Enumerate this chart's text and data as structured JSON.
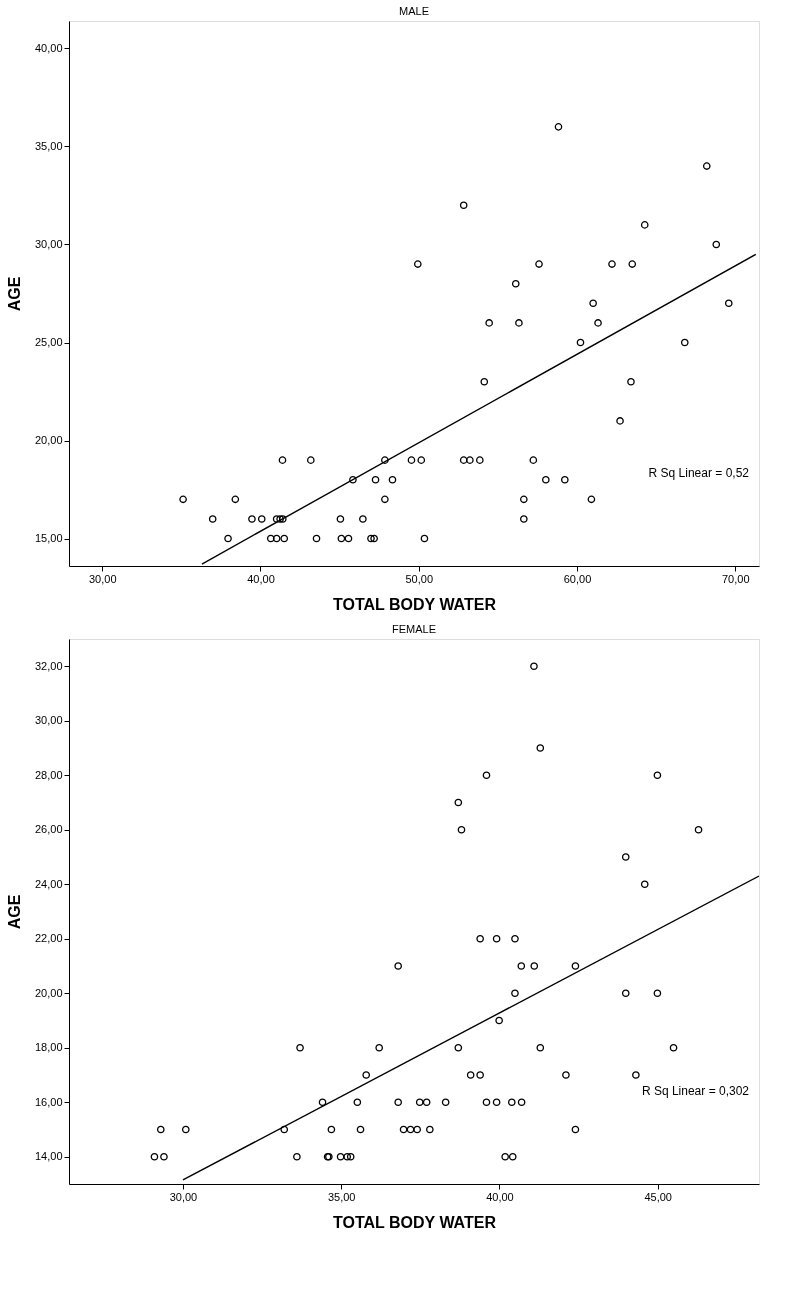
{
  "chart_data": [
    {
      "type": "scatter",
      "title": "MALE",
      "xlabel": "TOTAL BODY WATER",
      "ylabel": "AGE",
      "xlim": [
        27.9,
        71.5
      ],
      "ylim": [
        13.6,
        41.4
      ],
      "xticks": [
        {
          "value": 30,
          "label": "30,00"
        },
        {
          "value": 40,
          "label": "40,00"
        },
        {
          "value": 50,
          "label": "50,00"
        },
        {
          "value": 60,
          "label": "60,00"
        },
        {
          "value": 70,
          "label": "70,00"
        }
      ],
      "yticks": [
        {
          "value": 15,
          "label": "15,00"
        },
        {
          "value": 20,
          "label": "20,00"
        },
        {
          "value": 25,
          "label": "25,00"
        },
        {
          "value": 30,
          "label": "30,00"
        },
        {
          "value": 35,
          "label": "35,00"
        },
        {
          "value": 40,
          "label": "40,00"
        }
      ],
      "grid": false,
      "series": [
        {
          "type": "scatter",
          "marker": "circle",
          "color": "#000000",
          "x": [
            37.95,
            40.65,
            41.02,
            41.5,
            43.54,
            45.11,
            45.56,
            46.98,
            47.18,
            50.36,
            36.98,
            39.46,
            40.08,
            41.02,
            41.24,
            41.41,
            45.05,
            46.47,
            56.64,
            35.11,
            38.41,
            47.86,
            56.64,
            60.91,
            45.84,
            47.27,
            48.34,
            58.03,
            59.23,
            41.39,
            43.18,
            47.86,
            49.54,
            50.16,
            52.84,
            53.23,
            53.86,
            57.24,
            62.72,
            54.14,
            63.41,
            60.22,
            66.81,
            54.45,
            56.33,
            61.33,
            61.02,
            69.59,
            56.13,
            49.94,
            57.6,
            62.21,
            63.49,
            68.8,
            64.28,
            52.84,
            68.2,
            58.83
          ],
          "values": [
            15,
            15,
            15,
            15,
            15,
            15,
            15,
            15,
            15,
            15,
            16,
            16,
            16,
            16,
            16,
            16,
            16,
            16,
            16,
            17,
            17,
            17,
            17,
            17,
            18,
            18,
            18,
            18,
            18,
            19,
            19,
            19,
            19,
            19,
            19,
            19,
            19,
            19,
            21,
            23,
            23,
            25,
            25,
            26,
            26,
            26,
            27,
            27,
            28,
            29,
            29,
            29,
            29,
            30,
            31,
            32,
            34,
            36
          ]
        },
        {
          "type": "line",
          "marker": "none",
          "line_style": "solid",
          "color": "#000000",
          "x": [
            36.3,
            71.3
          ],
          "values": [
            13.7,
            29.5
          ]
        }
      ],
      "annotations": [
        "R Sq Linear = 0,52"
      ]
    },
    {
      "type": "scatter",
      "title": "FEMALE",
      "xlabel": "TOTAL BODY WATER",
      "ylabel": "AGE",
      "xlim": [
        26.4,
        48.2
      ],
      "ylim": [
        13.0,
        33.0
      ],
      "xticks": [
        {
          "value": 30,
          "label": "30,00"
        },
        {
          "value": 35,
          "label": "35,00"
        },
        {
          "value": 40,
          "label": "40,00"
        },
        {
          "value": 45,
          "label": "45,00"
        }
      ],
      "yticks": [
        {
          "value": 14,
          "label": "14,00"
        },
        {
          "value": 16,
          "label": "16,00"
        },
        {
          "value": 18,
          "label": "18,00"
        },
        {
          "value": 20,
          "label": "20,00"
        },
        {
          "value": 22,
          "label": "22,00"
        },
        {
          "value": 24,
          "label": "24,00"
        },
        {
          "value": 26,
          "label": "26,00"
        },
        {
          "value": 28,
          "label": "28,00"
        },
        {
          "value": 30,
          "label": "30,00"
        },
        {
          "value": 32,
          "label": "32,00"
        }
      ],
      "grid": false,
      "series": [
        {
          "type": "scatter",
          "marker": "circle",
          "color": "#000000",
          "x": [
            29.1,
            29.4,
            33.6,
            34.57,
            34.61,
            34.98,
            35.19,
            35.3,
            40.18,
            40.42,
            29.3,
            30.09,
            33.2,
            34.69,
            35.61,
            36.97,
            37.19,
            37.4,
            37.8,
            42.4,
            34.41,
            35.51,
            36.8,
            37.48,
            37.7,
            38.3,
            39.59,
            39.91,
            40.39,
            40.7,
            35.79,
            39.09,
            39.39,
            42.1,
            44.31,
            33.7,
            36.2,
            38.7,
            41.29,
            45.5,
            39.99,
            40.49,
            43.99,
            44.99,
            36.8,
            40.69,
            41.1,
            42.4,
            39.39,
            39.91,
            40.49,
            44.59,
            43.99,
            38.8,
            46.29,
            38.7,
            39.59,
            44.99,
            41.29,
            41.09
          ],
          "values": [
            14,
            14,
            14,
            14,
            14,
            14,
            14,
            14,
            14,
            14,
            15,
            15,
            15,
            15,
            15,
            15,
            15,
            15,
            15,
            15,
            16,
            16,
            16,
            16,
            16,
            16,
            16,
            16,
            16,
            16,
            17,
            17,
            17,
            17,
            17,
            18,
            18,
            18,
            18,
            18,
            19,
            20,
            20,
            20,
            21,
            21,
            21,
            21,
            22,
            22,
            22,
            24,
            25,
            26,
            26,
            27,
            28,
            28,
            29,
            32
          ]
        },
        {
          "type": "line",
          "marker": "none",
          "line_style": "solid",
          "color": "#000000",
          "x": [
            30.0,
            48.2
          ],
          "values": [
            13.15,
            24.3
          ]
        }
      ],
      "annotations": [
        "R Sq Linear = 0,302"
      ]
    }
  ]
}
